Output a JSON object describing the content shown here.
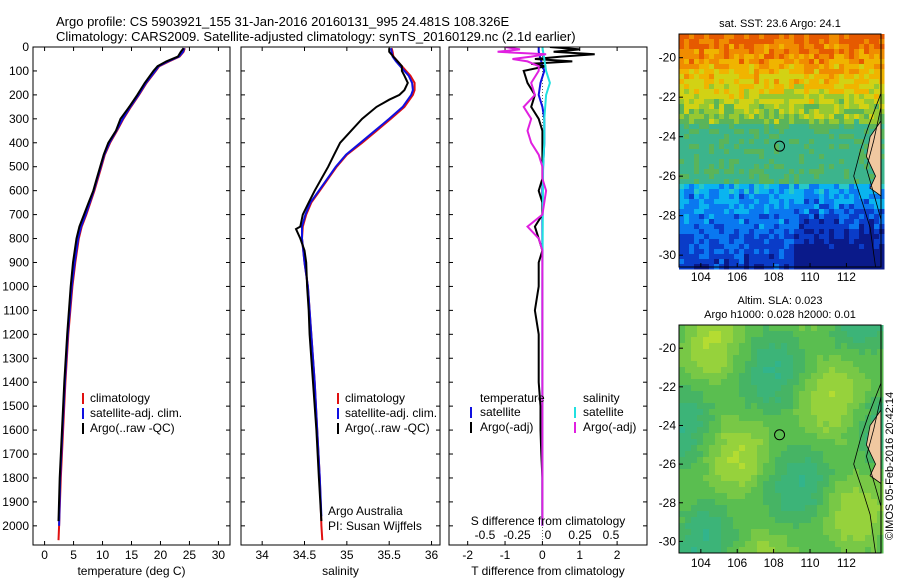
{
  "header": {
    "line1": "Argo profile: CS 5903921_155 31-Jan-2016 20160131_995 24.481S 108.326E",
    "line2": "Climatology: CARS2009. Satellite-adjusted climatology: synTS_20160129.nc (2.1d earlier)"
  },
  "colors": {
    "climatology": "#e01010",
    "satellite": "#1010e0",
    "argo": "#000000",
    "sal_satellite": "#20e0e0",
    "sal_argo": "#e020e0"
  },
  "chart_data": [
    {
      "type": "line",
      "panel": "temperature",
      "xlabel": "temperature (deg C)",
      "xlim": [
        -2,
        32
      ],
      "ylim": [
        2080,
        0
      ],
      "x_ticks": [
        0,
        5,
        10,
        15,
        20,
        25,
        30
      ],
      "y_ticks": [
        0,
        100,
        200,
        300,
        400,
        500,
        600,
        700,
        800,
        900,
        1000,
        1100,
        1200,
        1300,
        1400,
        1500,
        1600,
        1700,
        1800,
        1900,
        2000
      ],
      "legend": [
        "climatology",
        "satellite-adj. clim.",
        "Argo(..raw -QC)"
      ],
      "series": [
        {
          "name": "climatology",
          "color": "#e01010",
          "depth": [
            5,
            20,
            40,
            60,
            80,
            100,
            150,
            200,
            250,
            300,
            350,
            400,
            450,
            500,
            550,
            600,
            650,
            700,
            750,
            800,
            900,
            1000,
            1200,
            1400,
            1600,
            1800,
            2000,
            2060
          ],
          "values": [
            24.2,
            24.0,
            23.3,
            21.5,
            19.8,
            19.2,
            17.6,
            16.3,
            14.9,
            13.6,
            12.5,
            11.3,
            10.4,
            9.8,
            9.2,
            8.6,
            7.9,
            7.2,
            6.4,
            5.9,
            5.3,
            4.8,
            4.1,
            3.6,
            3.2,
            2.8,
            2.5,
            2.4
          ]
        },
        {
          "name": "satellite-adj. clim.",
          "color": "#1010e0",
          "depth": [
            5,
            20,
            40,
            60,
            80,
            100,
            150,
            200,
            250,
            300,
            350,
            400,
            450,
            500,
            550,
            600,
            650,
            700,
            750,
            800,
            900,
            1000,
            1200,
            1400,
            1600,
            1800,
            2000
          ],
          "values": [
            24.1,
            23.9,
            23.2,
            21.3,
            19.7,
            19.1,
            17.5,
            16.2,
            14.8,
            13.5,
            12.4,
            11.2,
            10.3,
            9.7,
            9.1,
            8.5,
            7.8,
            7.1,
            6.3,
            5.8,
            5.2,
            4.7,
            4.0,
            3.5,
            3.1,
            2.7,
            2.5
          ]
        },
        {
          "name": "Argo(..raw -QC)",
          "color": "#000000",
          "depth": [
            5,
            20,
            40,
            60,
            80,
            100,
            150,
            200,
            250,
            300,
            350,
            400,
            450,
            500,
            550,
            600,
            650,
            700,
            750,
            800,
            900,
            1000,
            1200,
            1400,
            1600,
            1800,
            1980
          ],
          "values": [
            24.0,
            23.5,
            23.0,
            21.0,
            19.5,
            18.8,
            17.3,
            16.0,
            14.6,
            13.1,
            12.3,
            11.0,
            10.2,
            9.6,
            9.0,
            8.4,
            7.6,
            6.8,
            6.0,
            5.5,
            4.9,
            4.5,
            3.9,
            3.4,
            3.0,
            2.6,
            2.4
          ]
        }
      ]
    },
    {
      "type": "line",
      "panel": "salinity",
      "xlabel": "salinity",
      "xlim": [
        33.75,
        36.1
      ],
      "ylim": [
        2080,
        0
      ],
      "x_ticks": [
        34,
        34.5,
        35,
        35.5,
        36
      ],
      "legend": [
        "climatology",
        "satellite-adj. clim.",
        "Argo(..raw -QC)"
      ],
      "annotation": [
        "Argo Australia",
        "PI: Susan Wijffels"
      ],
      "series": [
        {
          "name": "climatology",
          "color": "#e01010",
          "depth": [
            5,
            20,
            40,
            60,
            80,
            100,
            120,
            150,
            180,
            200,
            250,
            300,
            350,
            400,
            450,
            500,
            550,
            600,
            650,
            700,
            750,
            800,
            900,
            1000,
            1200,
            1400,
            1600,
            1800,
            2000,
            2060
          ],
          "values": [
            35.53,
            35.54,
            35.55,
            35.6,
            35.65,
            35.7,
            35.75,
            35.8,
            35.8,
            35.78,
            35.68,
            35.52,
            35.35,
            35.18,
            35.0,
            34.88,
            34.78,
            34.68,
            34.58,
            34.52,
            34.48,
            34.47,
            34.5,
            34.54,
            34.58,
            34.62,
            34.65,
            34.68,
            34.7,
            34.71
          ]
        },
        {
          "name": "satellite-adj. clim.",
          "color": "#1010e0",
          "depth": [
            5,
            20,
            40,
            60,
            80,
            100,
            120,
            150,
            180,
            200,
            250,
            300,
            350,
            400,
            450,
            500,
            550,
            600,
            650,
            700,
            750,
            800,
            900,
            1000,
            1200,
            1400,
            1600,
            1800,
            1960
          ],
          "values": [
            35.52,
            35.53,
            35.54,
            35.58,
            35.63,
            35.68,
            35.73,
            35.77,
            35.78,
            35.76,
            35.66,
            35.5,
            35.33,
            35.16,
            34.99,
            34.87,
            34.77,
            34.67,
            34.57,
            34.51,
            34.47,
            34.47,
            34.5,
            34.54,
            34.58,
            34.62,
            34.65,
            34.68,
            34.7
          ]
        },
        {
          "name": "Argo(..raw -QC)",
          "color": "#000000",
          "depth": [
            5,
            20,
            40,
            60,
            80,
            100,
            120,
            150,
            180,
            200,
            220,
            250,
            300,
            350,
            400,
            450,
            500,
            550,
            600,
            650,
            700,
            750,
            760,
            800,
            850,
            900,
            1000,
            1100,
            1200,
            1400,
            1600,
            1800,
            1980
          ],
          "values": [
            35.5,
            35.5,
            35.55,
            35.6,
            35.65,
            35.65,
            35.68,
            35.72,
            35.68,
            35.62,
            35.5,
            35.35,
            35.18,
            35.05,
            34.92,
            34.85,
            34.78,
            34.7,
            34.62,
            34.55,
            34.48,
            34.45,
            34.4,
            34.45,
            34.5,
            34.52,
            34.53,
            34.55,
            34.56,
            34.6,
            34.64,
            34.67,
            34.7
          ]
        }
      ]
    },
    {
      "type": "line",
      "panel": "difference",
      "xlabel": "T difference from climatology",
      "xlabel2": "S difference from climatology",
      "xlim": [
        -2.5,
        2.8
      ],
      "ylim": [
        2080,
        0
      ],
      "x_ticks": [
        -2,
        -1,
        0,
        1,
        2
      ],
      "x_ticks_s": [
        "-0.5",
        "-0.25",
        "0",
        "0.25",
        "0.5"
      ],
      "legend": [
        "temperature",
        "satellite",
        "Argo(-adj)",
        "salinity",
        "satellite",
        "Argo(-adj)"
      ],
      "series": [
        {
          "name": "temperature satellite",
          "color": "#1010e0",
          "depth": [
            0,
            20,
            50,
            100,
            150,
            200,
            250,
            300,
            400,
            500,
            600,
            700,
            800,
            1000,
            1500,
            2000
          ],
          "values": [
            -0.1,
            -0.1,
            -0.05,
            0.05,
            -0.05,
            -0.1,
            0,
            0.05,
            0.05,
            0.02,
            0,
            0,
            0,
            0,
            0,
            0
          ]
        },
        {
          "name": "temperature Argo(-adj)",
          "color": "#000000",
          "depth": [
            0,
            10,
            20,
            30,
            40,
            50,
            60,
            70,
            80,
            100,
            150,
            200,
            250,
            300,
            350,
            400,
            450,
            500,
            550,
            600,
            650,
            700,
            750,
            800,
            850,
            900,
            1000,
            1100,
            1200,
            1300,
            1400,
            1500,
            1600,
            1700,
            1800,
            1900,
            2000
          ],
          "values": [
            0.2,
            1.0,
            0.3,
            1.4,
            0.5,
            -0.2,
            0.8,
            -0.3,
            0.1,
            -0.5,
            -0.4,
            -0.2,
            -0.3,
            -0.1,
            0,
            0,
            0,
            0,
            0,
            -0.1,
            0,
            0,
            -0.2,
            -0.1,
            0,
            -0.1,
            -0.1,
            -0.2,
            -0.1,
            -0.1,
            -0.1,
            -0.05,
            -0.05,
            -0.03,
            0,
            0,
            0
          ]
        },
        {
          "name": "salinity satellite",
          "color": "#20e0e0",
          "depth": [
            0,
            20,
            50,
            100,
            150,
            200,
            300,
            400,
            500,
            700,
            1000,
            1500,
            2000
          ],
          "values": [
            0,
            0.02,
            0.05,
            0.1,
            0.2,
            0.1,
            0.05,
            0.05,
            0.02,
            0.01,
            0,
            0,
            0
          ]
        },
        {
          "name": "salinity Argo(-adj)",
          "color": "#e020e0",
          "depth": [
            0,
            10,
            20,
            30,
            40,
            50,
            60,
            80,
            100,
            150,
            200,
            250,
            300,
            350,
            400,
            450,
            500,
            550,
            600,
            700,
            750,
            800,
            850,
            900,
            1000,
            1500,
            2000
          ],
          "values": [
            -1.0,
            -0.6,
            -1.2,
            0.1,
            -0.3,
            -0.8,
            -0.4,
            -0.1,
            -0.1,
            -0.3,
            -0.2,
            -0.5,
            -0.3,
            -0.4,
            -0.3,
            -0.1,
            0,
            0,
            0.1,
            0,
            -0.4,
            -0.1,
            0,
            0,
            0,
            0,
            0
          ]
        }
      ]
    },
    {
      "type": "heatmap",
      "panel": "sst-map",
      "title": "sat. SST: 23.6 Argo: 24.1",
      "xlim": [
        102.8,
        113.9
      ],
      "ylim": [
        -30.6,
        -18.8
      ],
      "x_ticks": [
        104,
        106,
        108,
        110,
        112
      ],
      "y_ticks": [
        -20,
        -22,
        -24,
        -26,
        -28,
        -30
      ],
      "marker": {
        "lon": 108.326,
        "lat": -24.481
      }
    },
    {
      "type": "heatmap",
      "panel": "sla-map",
      "title": "Altim. SLA: 0.023",
      "subtitle": "Argo h1000: 0.028 h2000: 0.01",
      "xlim": [
        102.8,
        113.9
      ],
      "ylim": [
        -30.6,
        -18.8
      ],
      "x_ticks": [
        104,
        106,
        108,
        110,
        112
      ],
      "y_ticks": [
        -20,
        -22,
        -24,
        -26,
        -28,
        -30
      ],
      "marker": {
        "lon": 108.326,
        "lat": -24.481
      }
    }
  ],
  "watermark": "©IMOS 05-Feb-2016 20:42:14"
}
